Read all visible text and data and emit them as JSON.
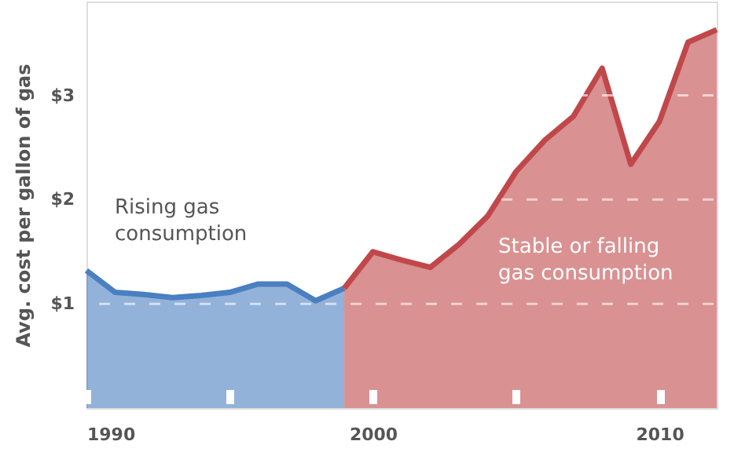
{
  "chart_data": {
    "type": "area",
    "ylabel": "Avg. cost per gallon of gas",
    "xlim": [
      1990,
      2012
    ],
    "xticks": [
      1990,
      {
        "value": 1995,
        "label": null
      },
      2000,
      {
        "value": 2005,
        "label": null
      },
      2010
    ],
    "ylim": [
      0,
      3.9
    ],
    "yticks": [
      {
        "value": 1,
        "label": "$1"
      },
      {
        "value": 2,
        "label": "$2"
      },
      {
        "value": 3,
        "label": "$3"
      }
    ],
    "grid": "y",
    "annotations": [
      "Rising gas consumption",
      "Stable or falling gas consumption"
    ],
    "series": [
      {
        "color": "#4a7fc1",
        "x": [
          1990,
          1991,
          1992,
          1993,
          1994,
          1995,
          1996,
          1997,
          1998,
          1999
        ],
        "values": [
          1.32,
          1.11,
          1.09,
          1.06,
          1.08,
          1.11,
          1.19,
          1.19,
          1.03,
          1.15
        ]
      },
      {
        "color": "#c0474a",
        "x": [
          1999,
          2000,
          2001,
          2002,
          2003,
          2004,
          2005,
          2006,
          2007,
          2008,
          2009,
          2010,
          2011,
          2012
        ],
        "values": [
          1.15,
          1.5,
          1.42,
          1.35,
          1.57,
          1.84,
          2.27,
          2.57,
          2.8,
          3.26,
          2.34,
          2.75,
          3.51,
          3.63
        ]
      }
    ]
  }
}
